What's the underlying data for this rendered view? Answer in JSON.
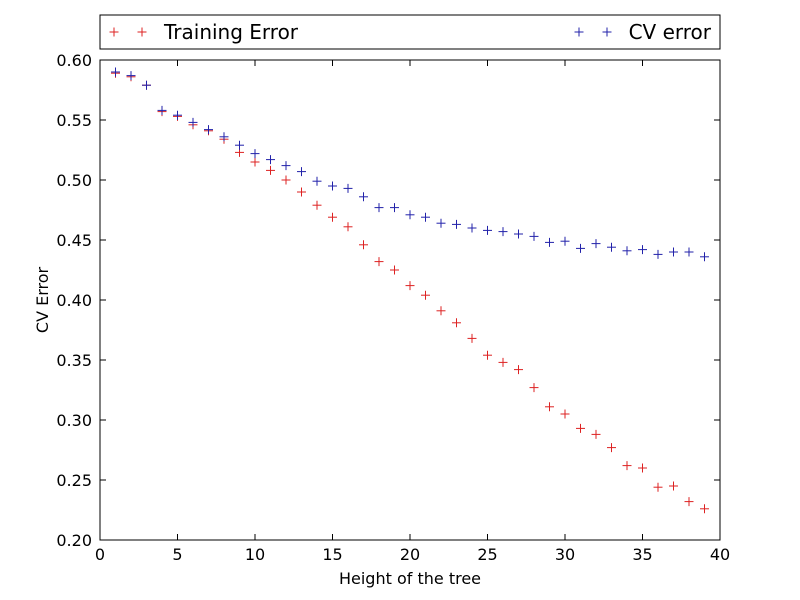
{
  "chart_data": {
    "type": "scatter",
    "xlabel": "Height of the tree",
    "ylabel": "CV Error",
    "xlim": [
      0,
      40
    ],
    "ylim": [
      0.2,
      0.6
    ],
    "x_ticks": [
      0,
      5,
      10,
      15,
      20,
      25,
      30,
      35,
      40
    ],
    "y_ticks": [
      0.2,
      0.25,
      0.3,
      0.35,
      0.4,
      0.45,
      0.5,
      0.55,
      0.6
    ],
    "x_tick_labels": [
      "0",
      "5",
      "10",
      "15",
      "20",
      "25",
      "30",
      "35",
      "40"
    ],
    "y_tick_labels": [
      "0.20",
      "0.25",
      "0.30",
      "0.35",
      "0.40",
      "0.45",
      "0.50",
      "0.55",
      "0.60"
    ],
    "grid": false,
    "legend_position": "top",
    "marker": "plus",
    "x": [
      1,
      2,
      3,
      4,
      5,
      6,
      7,
      8,
      9,
      10,
      11,
      12,
      13,
      14,
      15,
      16,
      17,
      18,
      19,
      20,
      21,
      22,
      23,
      24,
      25,
      26,
      27,
      28,
      29,
      30,
      31,
      32,
      33,
      34,
      35,
      36,
      37,
      38,
      39
    ],
    "series": [
      {
        "name": "Training Error",
        "color": "#dd2222",
        "values": [
          0.589,
          0.586,
          0.579,
          0.557,
          0.553,
          0.546,
          0.541,
          0.534,
          0.523,
          0.515,
          0.508,
          0.5,
          0.49,
          0.479,
          0.469,
          0.461,
          0.446,
          0.432,
          0.425,
          0.412,
          0.404,
          0.391,
          0.381,
          0.368,
          0.354,
          0.348,
          0.342,
          0.327,
          0.311,
          0.305,
          0.293,
          0.288,
          0.277,
          0.262,
          0.26,
          0.244,
          0.245,
          0.232,
          0.226
        ]
      },
      {
        "name": "CV error",
        "color": "#2222aa",
        "values": [
          0.59,
          0.587,
          0.579,
          0.558,
          0.554,
          0.548,
          0.542,
          0.536,
          0.529,
          0.522,
          0.517,
          0.512,
          0.507,
          0.499,
          0.495,
          0.493,
          0.486,
          0.477,
          0.477,
          0.471,
          0.469,
          0.464,
          0.463,
          0.46,
          0.458,
          0.457,
          0.455,
          0.453,
          0.448,
          0.449,
          0.443,
          0.447,
          0.444,
          0.441,
          0.442,
          0.438,
          0.44,
          0.44,
          0.436
        ]
      }
    ]
  }
}
